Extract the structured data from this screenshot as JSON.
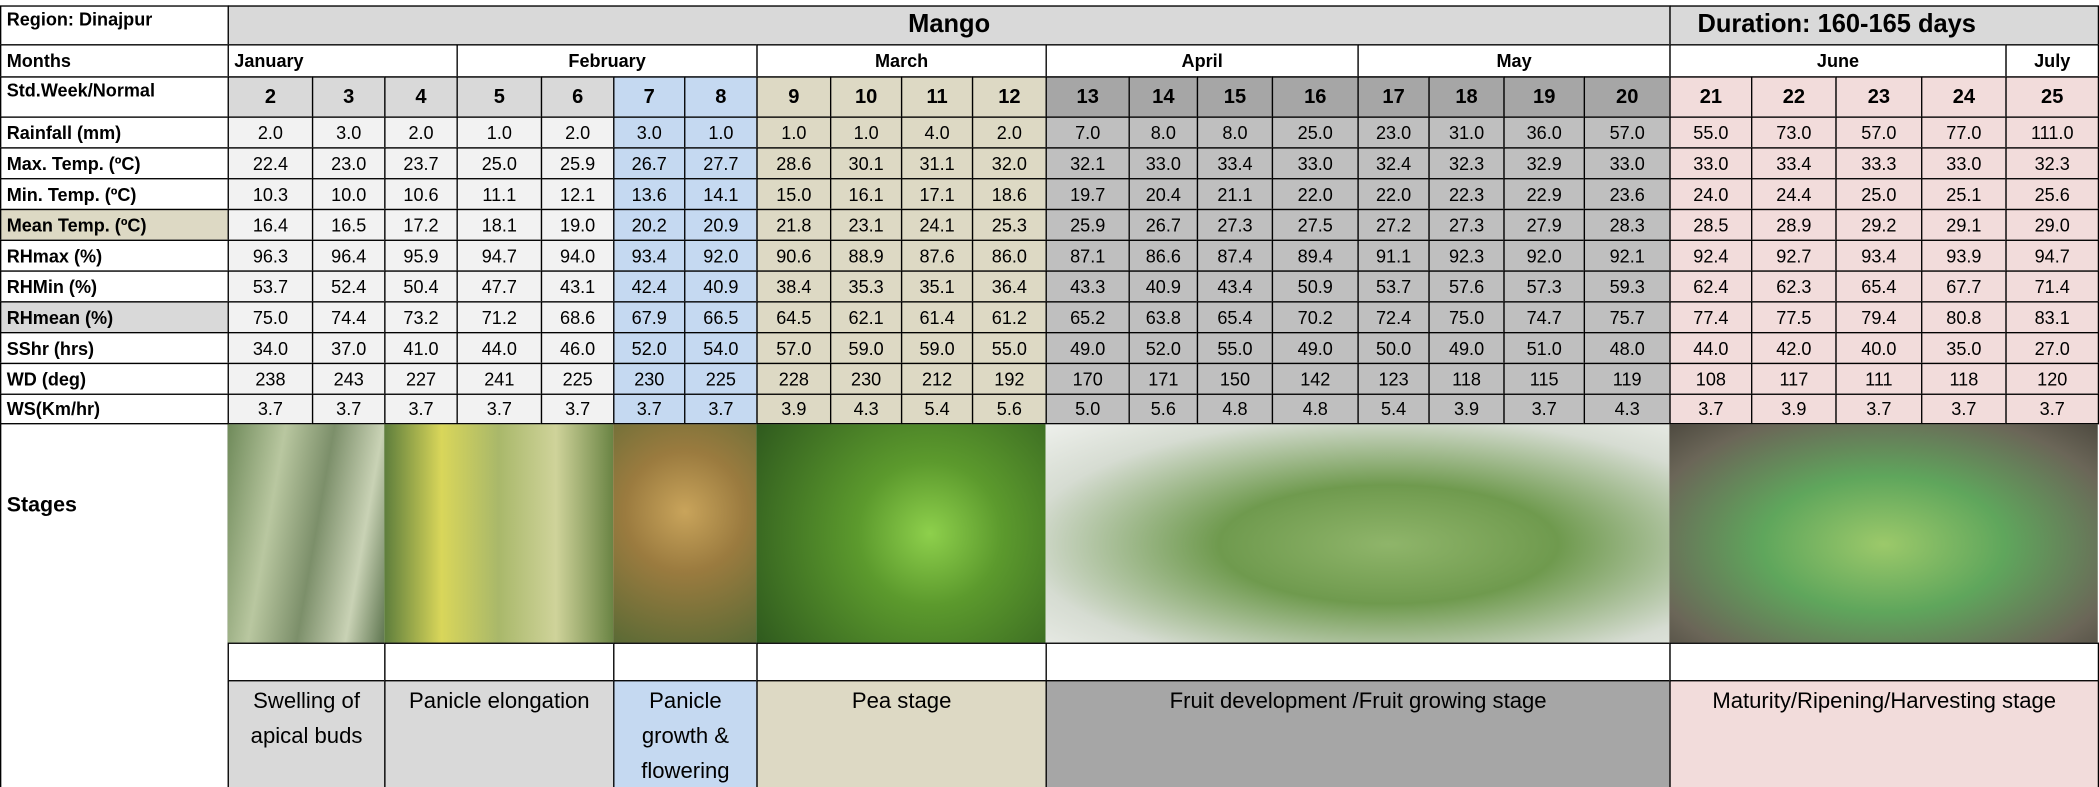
{
  "header": {
    "region": "Region: Dinajpur",
    "title": "Mango",
    "duration": "Duration: 160-165 days"
  },
  "months_label": "Months",
  "months": [
    "January",
    "February",
    "March",
    "April",
    "May",
    "June",
    "July"
  ],
  "weeks_label": "Std.Week/Normal",
  "weeks": [
    "2",
    "3",
    "4",
    "5",
    "6",
    "7",
    "8",
    "9",
    "10",
    "11",
    "12",
    "13",
    "14",
    "15",
    "16",
    "17",
    "18",
    "19",
    "20",
    "21",
    "22",
    "23",
    "24",
    "25"
  ],
  "table": {
    "rows": [
      {
        "label": "Rainfall (mm)",
        "values": [
          "2.0",
          "3.0",
          "2.0",
          "1.0",
          "2.0",
          "3.0",
          "1.0",
          "1.0",
          "1.0",
          "4.0",
          "2.0",
          "7.0",
          "8.0",
          "8.0",
          "25.0",
          "23.0",
          "31.0",
          "36.0",
          "57.0",
          "55.0",
          "73.0",
          "57.0",
          "77.0",
          "111.0"
        ]
      },
      {
        "label": "Max. Temp. (ºC)",
        "values": [
          "22.4",
          "23.0",
          "23.7",
          "25.0",
          "25.9",
          "26.7",
          "27.7",
          "28.6",
          "30.1",
          "31.1",
          "32.0",
          "32.1",
          "33.0",
          "33.4",
          "33.0",
          "32.4",
          "32.3",
          "32.9",
          "33.0",
          "33.0",
          "33.4",
          "33.3",
          "33.0",
          "32.3"
        ]
      },
      {
        "label": "Min. Temp. (ºC)",
        "values": [
          "10.3",
          "10.0",
          "10.6",
          "11.1",
          "12.1",
          "13.6",
          "14.1",
          "15.0",
          "16.1",
          "17.1",
          "18.6",
          "19.7",
          "20.4",
          "21.1",
          "22.0",
          "22.0",
          "22.3",
          "22.9",
          "23.6",
          "24.0",
          "24.4",
          "25.0",
          "25.1",
          "25.6"
        ]
      },
      {
        "label": "Mean Temp. (ºC)",
        "values": [
          "16.4",
          "16.5",
          "17.2",
          "18.1",
          "19.0",
          "20.2",
          "20.9",
          "21.8",
          "23.1",
          "24.1",
          "25.3",
          "25.9",
          "26.7",
          "27.3",
          "27.5",
          "27.2",
          "27.3",
          "27.9",
          "28.3",
          "28.5",
          "28.9",
          "29.2",
          "29.1",
          "29.0"
        ]
      },
      {
        "label": "RHmax (%)",
        "values": [
          "96.3",
          "96.4",
          "95.9",
          "94.7",
          "94.0",
          "93.4",
          "92.0",
          "90.6",
          "88.9",
          "87.6",
          "86.0",
          "87.1",
          "86.6",
          "87.4",
          "89.4",
          "91.1",
          "92.3",
          "92.0",
          "92.1",
          "92.4",
          "92.7",
          "93.4",
          "93.9",
          "94.7"
        ]
      },
      {
        "label": "RHMin (%)",
        "values": [
          "53.7",
          "52.4",
          "50.4",
          "47.7",
          "43.1",
          "42.4",
          "40.9",
          "38.4",
          "35.3",
          "35.1",
          "36.4",
          "43.3",
          "40.9",
          "43.4",
          "50.9",
          "53.7",
          "57.6",
          "57.3",
          "59.3",
          "62.4",
          "62.3",
          "65.4",
          "67.7",
          "71.4"
        ]
      },
      {
        "label": "RHmean (%)",
        "values": [
          "75.0",
          "74.4",
          "73.2",
          "71.2",
          "68.6",
          "67.9",
          "66.5",
          "64.5",
          "62.1",
          "61.4",
          "61.2",
          "65.2",
          "63.8",
          "65.4",
          "70.2",
          "72.4",
          "75.0",
          "74.7",
          "75.7",
          "77.4",
          "77.5",
          "79.4",
          "80.8",
          "83.1"
        ]
      },
      {
        "label": "SShr (hrs)",
        "values": [
          "34.0",
          "37.0",
          "41.0",
          "44.0",
          "46.0",
          "52.0",
          "54.0",
          "57.0",
          "59.0",
          "59.0",
          "55.0",
          "49.0",
          "52.0",
          "55.0",
          "49.0",
          "50.0",
          "49.0",
          "51.0",
          "48.0",
          "44.0",
          "42.0",
          "40.0",
          "35.0",
          "27.0"
        ]
      },
      {
        "label": "WD (deg)",
        "values": [
          "238",
          "243",
          "227",
          "241",
          "225",
          "230",
          "225",
          "228",
          "230",
          "212",
          "192",
          "170",
          "171",
          "150",
          "142",
          "123",
          "118",
          "115",
          "119",
          "108",
          "117",
          "111",
          "118",
          "120"
        ]
      },
      {
        "label": "WS(Km/hr)",
        "values": [
          "3.7",
          "3.7",
          "3.7",
          "3.7",
          "3.7",
          "3.7",
          "3.7",
          "3.9",
          "4.3",
          "5.4",
          "5.6",
          "5.0",
          "5.6",
          "4.8",
          "4.8",
          "5.4",
          "3.9",
          "3.7",
          "4.3",
          "3.7",
          "3.9",
          "3.7",
          "3.7",
          "3.7"
        ]
      }
    ]
  },
  "stages_label": "Stages",
  "stages": [
    "Swelling of apical buds",
    "Panicle elongation",
    "Panicle growth & flowering",
    "Pea stage",
    "Fruit development /Fruit growing stage",
    "Maturity/Ripening/Harvesting stage"
  ]
}
